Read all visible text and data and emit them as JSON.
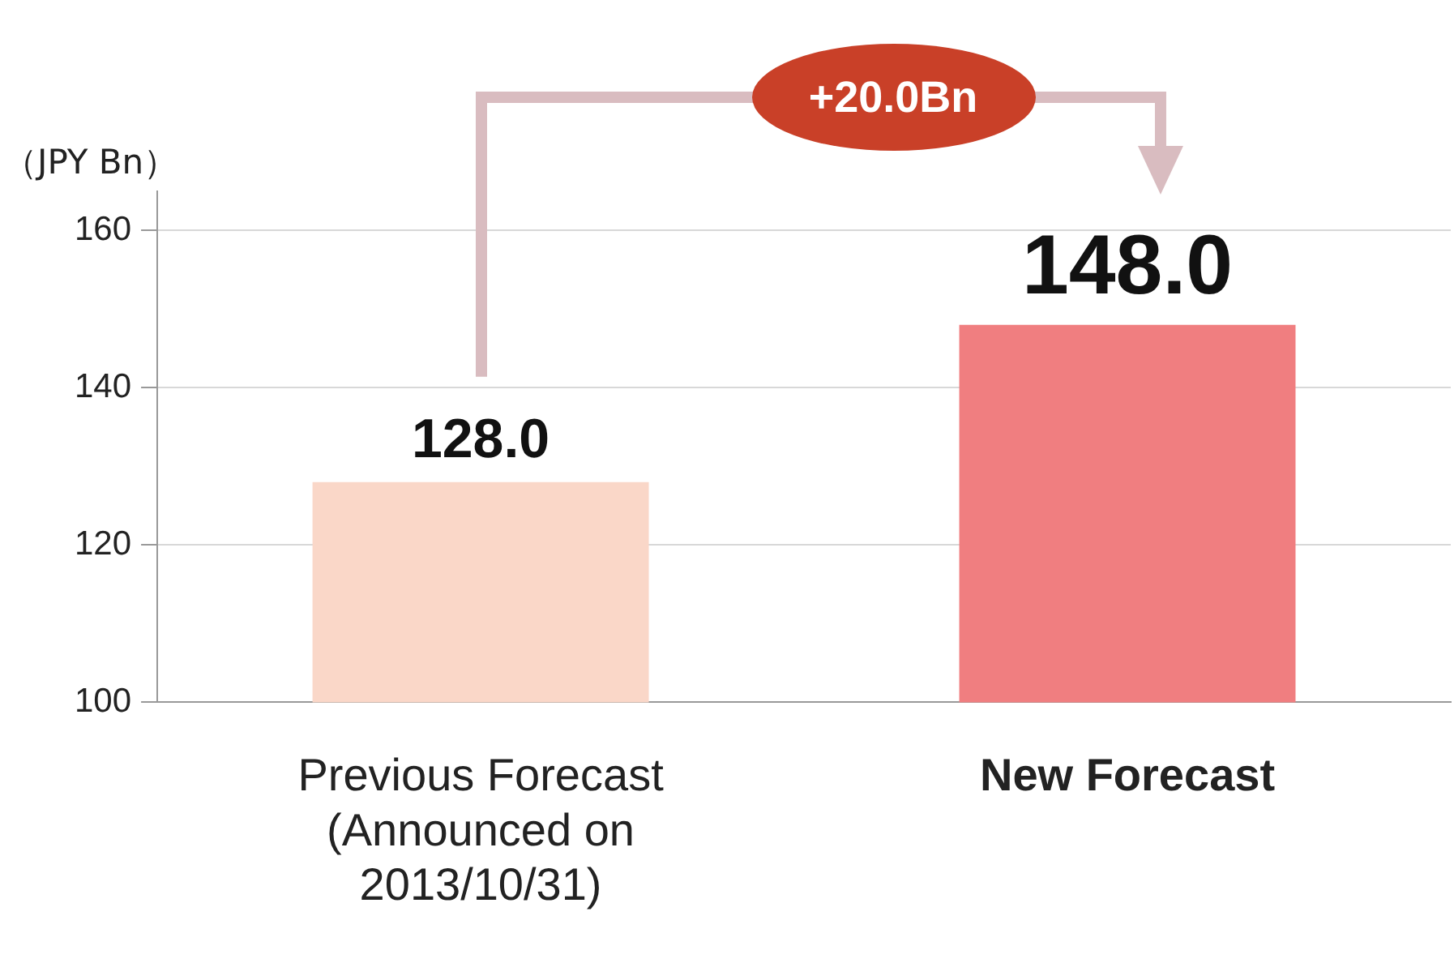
{
  "chart_data": {
    "type": "bar",
    "ylabel": "（JPY Bn）",
    "categories": [
      "Previous Forecast\n(Announced on\n2013/10/31)",
      "New Forecast"
    ],
    "values": [
      128,
      148
    ],
    "colors": [
      "#fad7c8",
      "#f07e80"
    ],
    "value_labels": [
      "128.0",
      "148.0"
    ],
    "ylim": [
      100,
      165
    ],
    "yticks": [
      100,
      120,
      140,
      160
    ],
    "grid": "y",
    "legend": false,
    "annotations": [
      "+20.0Bn"
    ]
  }
}
